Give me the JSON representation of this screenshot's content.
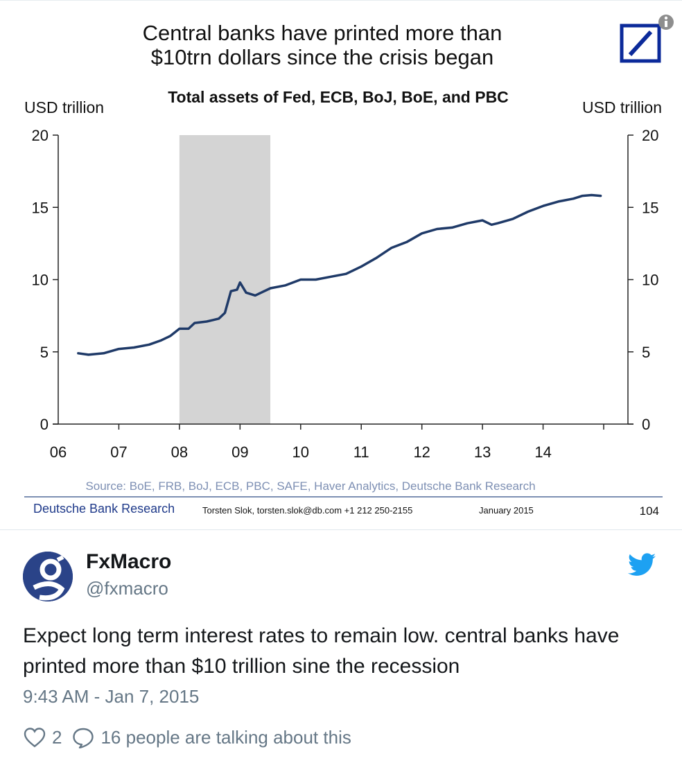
{
  "chart": {
    "title_line1": "Central banks have printed more than",
    "title_line2": "$10trn dollars since the crisis began",
    "subtitle": "Total assets of Fed, ECB, BoJ, BoE, and PBC",
    "left_axis_label": "USD trillion",
    "right_axis_label": "USD trillion",
    "source": "Source: BoE, FRB, BoJ, ECB, PBC, SAFE, Haver Analytics, Deutsche Bank Research",
    "footer_org": "Deutsche Bank Research",
    "footer_contact": "Torsten Slok, torsten.slok@db.com  +1 212 250-2155",
    "footer_date": "January 2015",
    "footer_page": "104",
    "info_icon": "info-icon",
    "logo_icon": "deutsche-bank-logo"
  },
  "chart_data": {
    "type": "line",
    "title": "Total assets of Fed, ECB, BoJ, BoE, and PBC",
    "ylabel": "USD trillion",
    "xlabel": "",
    "ylim": [
      0,
      20
    ],
    "xlim": [
      2006,
      2015.4
    ],
    "x_tick_labels": [
      "06",
      "07",
      "08",
      "09",
      "10",
      "11",
      "12",
      "13",
      "14"
    ],
    "y_ticks": [
      0,
      5,
      10,
      15,
      20
    ],
    "grid": false,
    "shaded_region": {
      "start": 2008.0,
      "end": 2009.5,
      "color": "#d4d4d4"
    },
    "line_color": "#1f3a68",
    "series": [
      {
        "x": [
          2006.33,
          2006.5,
          2006.75,
          2007.0,
          2007.25,
          2007.5,
          2007.7,
          2007.85,
          2008.0,
          2008.15,
          2008.25,
          2008.45,
          2008.55,
          2008.65,
          2008.75,
          2008.85,
          2008.95,
          2009.0,
          2009.1,
          2009.25,
          2009.5,
          2009.75,
          2010.0,
          2010.25,
          2010.5,
          2010.75,
          2011.0,
          2011.25,
          2011.5,
          2011.75,
          2012.0,
          2012.25,
          2012.5,
          2012.75,
          2013.0,
          2013.15,
          2013.25,
          2013.5,
          2013.75,
          2014.0,
          2014.25,
          2014.5,
          2014.65,
          2014.8,
          2014.95
        ],
        "y": [
          4.9,
          4.8,
          4.9,
          5.2,
          5.3,
          5.5,
          5.8,
          6.1,
          6.6,
          6.6,
          7.0,
          7.1,
          7.2,
          7.3,
          7.7,
          9.2,
          9.3,
          9.8,
          9.1,
          8.9,
          9.4,
          9.6,
          10.0,
          10.0,
          10.2,
          10.4,
          10.9,
          11.5,
          12.2,
          12.6,
          13.2,
          13.5,
          13.6,
          13.9,
          14.1,
          13.8,
          13.9,
          14.2,
          14.7,
          15.1,
          15.4,
          15.6,
          15.8,
          15.85,
          15.8
        ]
      }
    ]
  },
  "tweet": {
    "display_name": "FxMacro",
    "handle": "@fxmacro",
    "text": "Expect long term interest rates to remain low. central banks have printed more than $10 trillion sine the recession",
    "timestamp": "9:43 AM - Jan 7, 2015",
    "like_count": "2",
    "talking_text": "16 people are talking about this",
    "avatar_icon": "avatar",
    "bird_icon": "twitter-bird-icon",
    "like_icon": "heart-icon",
    "reply_icon": "reply-bubble-icon",
    "brand_color": "#1da1f2",
    "muted_color": "#657786"
  }
}
